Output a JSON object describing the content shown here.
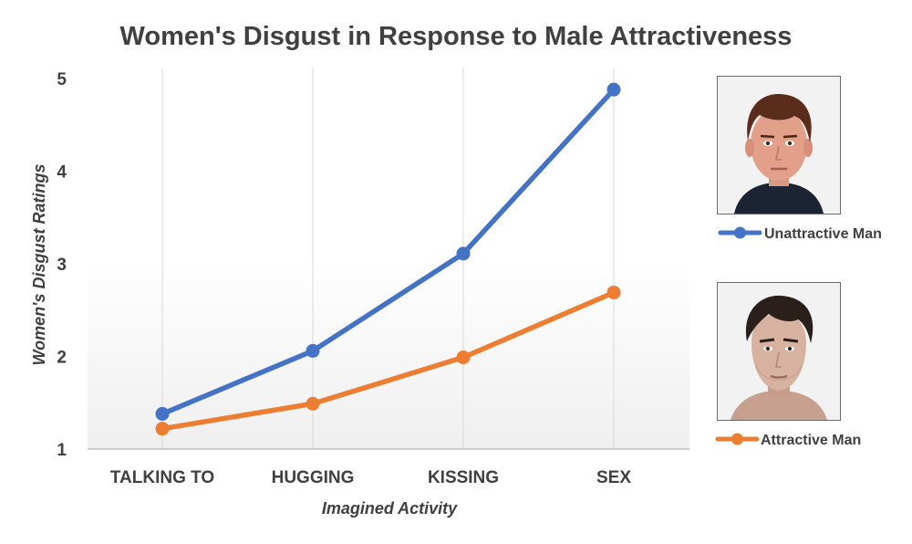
{
  "chart_data": {
    "type": "line",
    "title": "Women's Disgust in Response to Male Attractiveness",
    "xlabel": "Imagined Activity",
    "ylabel": "Women's Disgust Ratings",
    "categories": [
      "TALKING TO",
      "HUGGING",
      "KISSING",
      "SEX"
    ],
    "ylim": [
      1,
      5
    ],
    "yticks": [
      1,
      2,
      3,
      4,
      5
    ],
    "grid": "vertical",
    "series": [
      {
        "name": "Unattractive Man",
        "color": "#4472C4",
        "values": [
          1.38,
          2.06,
          3.11,
          4.88
        ]
      },
      {
        "name": "Attractive Man",
        "color": "#ED7D31",
        "values": [
          1.22,
          1.49,
          1.99,
          2.69
        ]
      }
    ],
    "legend": "right, each entry below a face photo"
  },
  "photos": [
    {
      "name": "unattractive-man-photo",
      "series": "Unattractive Man"
    },
    {
      "name": "attractive-man-photo",
      "series": "Attractive Man"
    }
  ]
}
